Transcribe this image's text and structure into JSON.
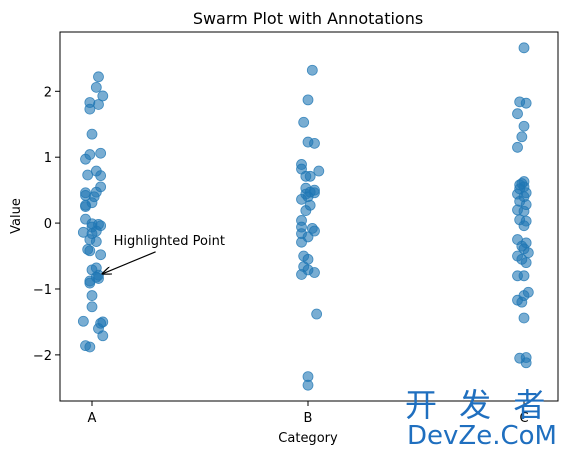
{
  "chart_data": {
    "type": "scatter",
    "title": "Swarm Plot with Annotations",
    "xlabel": "Category",
    "ylabel": "Value",
    "categories": [
      "A",
      "B",
      "C"
    ],
    "ylim": [
      -2.7,
      2.9
    ],
    "yticks": [
      -2,
      -1,
      0,
      1,
      2
    ],
    "grid": false,
    "point_color": "#1f77b4",
    "point_alpha": 0.6,
    "series": [
      {
        "category": "A",
        "points": [
          {
            "dx": 0.03,
            "y": 2.22
          },
          {
            "dx": 0.02,
            "y": 2.06
          },
          {
            "dx": 0.05,
            "y": 1.93
          },
          {
            "dx": -0.01,
            "y": 1.83
          },
          {
            "dx": 0.03,
            "y": 1.8
          },
          {
            "dx": -0.01,
            "y": 1.73
          },
          {
            "dx": 0.0,
            "y": 1.35
          },
          {
            "dx": 0.04,
            "y": 1.06
          },
          {
            "dx": -0.01,
            "y": 1.04
          },
          {
            "dx": -0.03,
            "y": 0.97
          },
          {
            "dx": 0.02,
            "y": 0.79
          },
          {
            "dx": -0.02,
            "y": 0.73
          },
          {
            "dx": 0.04,
            "y": 0.72
          },
          {
            "dx": 0.04,
            "y": 0.55
          },
          {
            "dx": 0.02,
            "y": 0.47
          },
          {
            "dx": -0.03,
            "y": 0.46
          },
          {
            "dx": -0.03,
            "y": 0.42
          },
          {
            "dx": 0.01,
            "y": 0.4
          },
          {
            "dx": 0.0,
            "y": 0.31
          },
          {
            "dx": -0.03,
            "y": 0.27
          },
          {
            "dx": -0.03,
            "y": 0.25
          },
          {
            "dx": -0.03,
            "y": 0.06
          },
          {
            "dx": 0.0,
            "y": -0.01
          },
          {
            "dx": 0.03,
            "y": -0.02
          },
          {
            "dx": 0.04,
            "y": -0.04
          },
          {
            "dx": 0.0,
            "y": -0.06
          },
          {
            "dx": 0.02,
            "y": -0.12
          },
          {
            "dx": -0.04,
            "y": -0.14
          },
          {
            "dx": 0.0,
            "y": -0.16
          },
          {
            "dx": -0.01,
            "y": -0.25
          },
          {
            "dx": 0.02,
            "y": -0.28
          },
          {
            "dx": -0.02,
            "y": -0.4
          },
          {
            "dx": -0.01,
            "y": -0.42
          },
          {
            "dx": 0.04,
            "y": -0.48
          },
          {
            "dx": 0.02,
            "y": -0.68
          },
          {
            "dx": 0.0,
            "y": -0.71
          },
          {
            "dx": 0.03,
            "y": -0.79
          },
          {
            "dx": 0.02,
            "y": -0.82
          },
          {
            "dx": 0.03,
            "y": -0.84
          },
          {
            "dx": -0.01,
            "y": -0.88
          },
          {
            "dx": -0.01,
            "y": -0.91
          },
          {
            "dx": 0.0,
            "y": -1.1
          },
          {
            "dx": 0.0,
            "y": -1.27
          },
          {
            "dx": 0.05,
            "y": -1.5
          },
          {
            "dx": 0.04,
            "y": -1.52
          },
          {
            "dx": -0.04,
            "y": -1.49
          },
          {
            "dx": 0.03,
            "y": -1.6
          },
          {
            "dx": 0.05,
            "y": -1.71
          },
          {
            "dx": -0.03,
            "y": -1.86
          },
          {
            "dx": -0.01,
            "y": -1.88
          }
        ]
      },
      {
        "category": "B",
        "points": [
          {
            "dx": 0.02,
            "y": 2.32
          },
          {
            "dx": 0.0,
            "y": 1.87
          },
          {
            "dx": -0.02,
            "y": 1.53
          },
          {
            "dx": 0.0,
            "y": 1.23
          },
          {
            "dx": 0.03,
            "y": 1.21
          },
          {
            "dx": -0.03,
            "y": 0.89
          },
          {
            "dx": -0.03,
            "y": 0.82
          },
          {
            "dx": 0.05,
            "y": 0.79
          },
          {
            "dx": 0.01,
            "y": 0.71
          },
          {
            "dx": -0.01,
            "y": 0.71
          },
          {
            "dx": -0.01,
            "y": 0.53
          },
          {
            "dx": 0.03,
            "y": 0.5
          },
          {
            "dx": 0.01,
            "y": 0.47
          },
          {
            "dx": 0.03,
            "y": 0.46
          },
          {
            "dx": -0.01,
            "y": 0.44
          },
          {
            "dx": 0.0,
            "y": 0.4
          },
          {
            "dx": -0.03,
            "y": 0.36
          },
          {
            "dx": 0.01,
            "y": 0.27
          },
          {
            "dx": -0.01,
            "y": 0.19
          },
          {
            "dx": -0.03,
            "y": 0.04
          },
          {
            "dx": -0.03,
            "y": -0.06
          },
          {
            "dx": 0.02,
            "y": -0.08
          },
          {
            "dx": 0.03,
            "y": -0.12
          },
          {
            "dx": -0.03,
            "y": -0.16
          },
          {
            "dx": 0.0,
            "y": -0.21
          },
          {
            "dx": -0.03,
            "y": -0.29
          },
          {
            "dx": -0.02,
            "y": -0.5
          },
          {
            "dx": 0.0,
            "y": -0.55
          },
          {
            "dx": -0.02,
            "y": -0.66
          },
          {
            "dx": 0.0,
            "y": -0.71
          },
          {
            "dx": 0.03,
            "y": -0.75
          },
          {
            "dx": -0.03,
            "y": -0.78
          },
          {
            "dx": 0.04,
            "y": -1.38
          },
          {
            "dx": 0.0,
            "y": -2.33
          },
          {
            "dx": 0.0,
            "y": -2.46
          }
        ]
      },
      {
        "category": "C",
        "points": [
          {
            "dx": 0.0,
            "y": 2.66
          },
          {
            "dx": -0.02,
            "y": 1.84
          },
          {
            "dx": 0.01,
            "y": 1.82
          },
          {
            "dx": -0.03,
            "y": 1.66
          },
          {
            "dx": 0.0,
            "y": 1.47
          },
          {
            "dx": -0.01,
            "y": 1.31
          },
          {
            "dx": -0.03,
            "y": 1.15
          },
          {
            "dx": 0.0,
            "y": 0.63
          },
          {
            "dx": -0.01,
            "y": 0.6
          },
          {
            "dx": -0.02,
            "y": 0.58
          },
          {
            "dx": 0.0,
            "y": 0.55
          },
          {
            "dx": -0.02,
            "y": 0.52
          },
          {
            "dx": 0.01,
            "y": 0.46
          },
          {
            "dx": -0.03,
            "y": 0.44
          },
          {
            "dx": 0.0,
            "y": 0.4
          },
          {
            "dx": -0.02,
            "y": 0.33
          },
          {
            "dx": 0.01,
            "y": 0.28
          },
          {
            "dx": -0.03,
            "y": 0.2
          },
          {
            "dx": 0.0,
            "y": 0.18
          },
          {
            "dx": -0.02,
            "y": 0.05
          },
          {
            "dx": 0.01,
            "y": 0.03
          },
          {
            "dx": 0.0,
            "y": -0.04
          },
          {
            "dx": -0.03,
            "y": -0.25
          },
          {
            "dx": 0.01,
            "y": -0.3
          },
          {
            "dx": -0.01,
            "y": -0.35
          },
          {
            "dx": 0.0,
            "y": -0.39
          },
          {
            "dx": 0.02,
            "y": -0.45
          },
          {
            "dx": -0.03,
            "y": -0.5
          },
          {
            "dx": -0.01,
            "y": -0.55
          },
          {
            "dx": 0.01,
            "y": -0.6
          },
          {
            "dx": 0.0,
            "y": -0.8
          },
          {
            "dx": -0.03,
            "y": -0.8
          },
          {
            "dx": 0.02,
            "y": -1.05
          },
          {
            "dx": 0.0,
            "y": -1.1
          },
          {
            "dx": -0.03,
            "y": -1.17
          },
          {
            "dx": -0.01,
            "y": -1.2
          },
          {
            "dx": 0.0,
            "y": -1.44
          },
          {
            "dx": -0.02,
            "y": -2.05
          },
          {
            "dx": 0.01,
            "y": -2.04
          },
          {
            "dx": 0.01,
            "y": -2.12
          }
        ]
      }
    ],
    "annotations": [
      {
        "text": "Highlighted Point",
        "category": "A",
        "dx": 0.03,
        "y": -0.8,
        "text_x_offset": 0.1,
        "text_y": -0.33
      }
    ]
  },
  "watermark": {
    "line1": "开 发 者",
    "line2": "DevZe.CoM"
  }
}
